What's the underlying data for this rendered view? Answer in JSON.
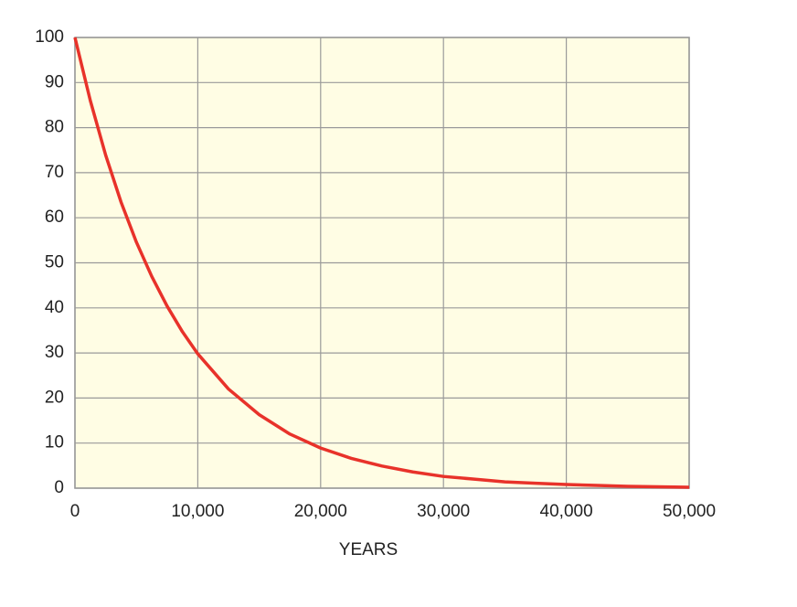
{
  "chart_data": {
    "type": "line",
    "x_label": "YEARS",
    "x": [
      0,
      1250,
      2500,
      3750,
      5000,
      6250,
      7500,
      8750,
      10000,
      12500,
      15000,
      17500,
      20000,
      22500,
      25000,
      27500,
      30000,
      32500,
      35000,
      37500,
      40000,
      42500,
      45000,
      47500,
      50000
    ],
    "series": [
      {
        "color": "#e8322a",
        "values": [
          100,
          86,
          73.9,
          63.5,
          54.6,
          47,
          40.4,
          34.7,
          29.8,
          22,
          16.3,
          12,
          8.9,
          6.6,
          4.9,
          3.6,
          2.6,
          2,
          1.4,
          1.1,
          0.8,
          0.6,
          0.4,
          0.3,
          0.2
        ]
      }
    ],
    "xlim": [
      0,
      50000
    ],
    "xticks": [
      0,
      {
        "value": 10000,
        "label": "10,000"
      },
      {
        "value": 20000,
        "label": "20,000"
      },
      {
        "value": 30000,
        "label": "30,000"
      },
      {
        "value": 40000,
        "label": "40,000"
      },
      {
        "value": 50000,
        "label": "50,000"
      }
    ],
    "ylim": [
      0,
      100
    ],
    "yticks": [
      0,
      10,
      20,
      30,
      40,
      50,
      60,
      70,
      80,
      90,
      100
    ],
    "grid": true,
    "background": "#fffde4"
  }
}
